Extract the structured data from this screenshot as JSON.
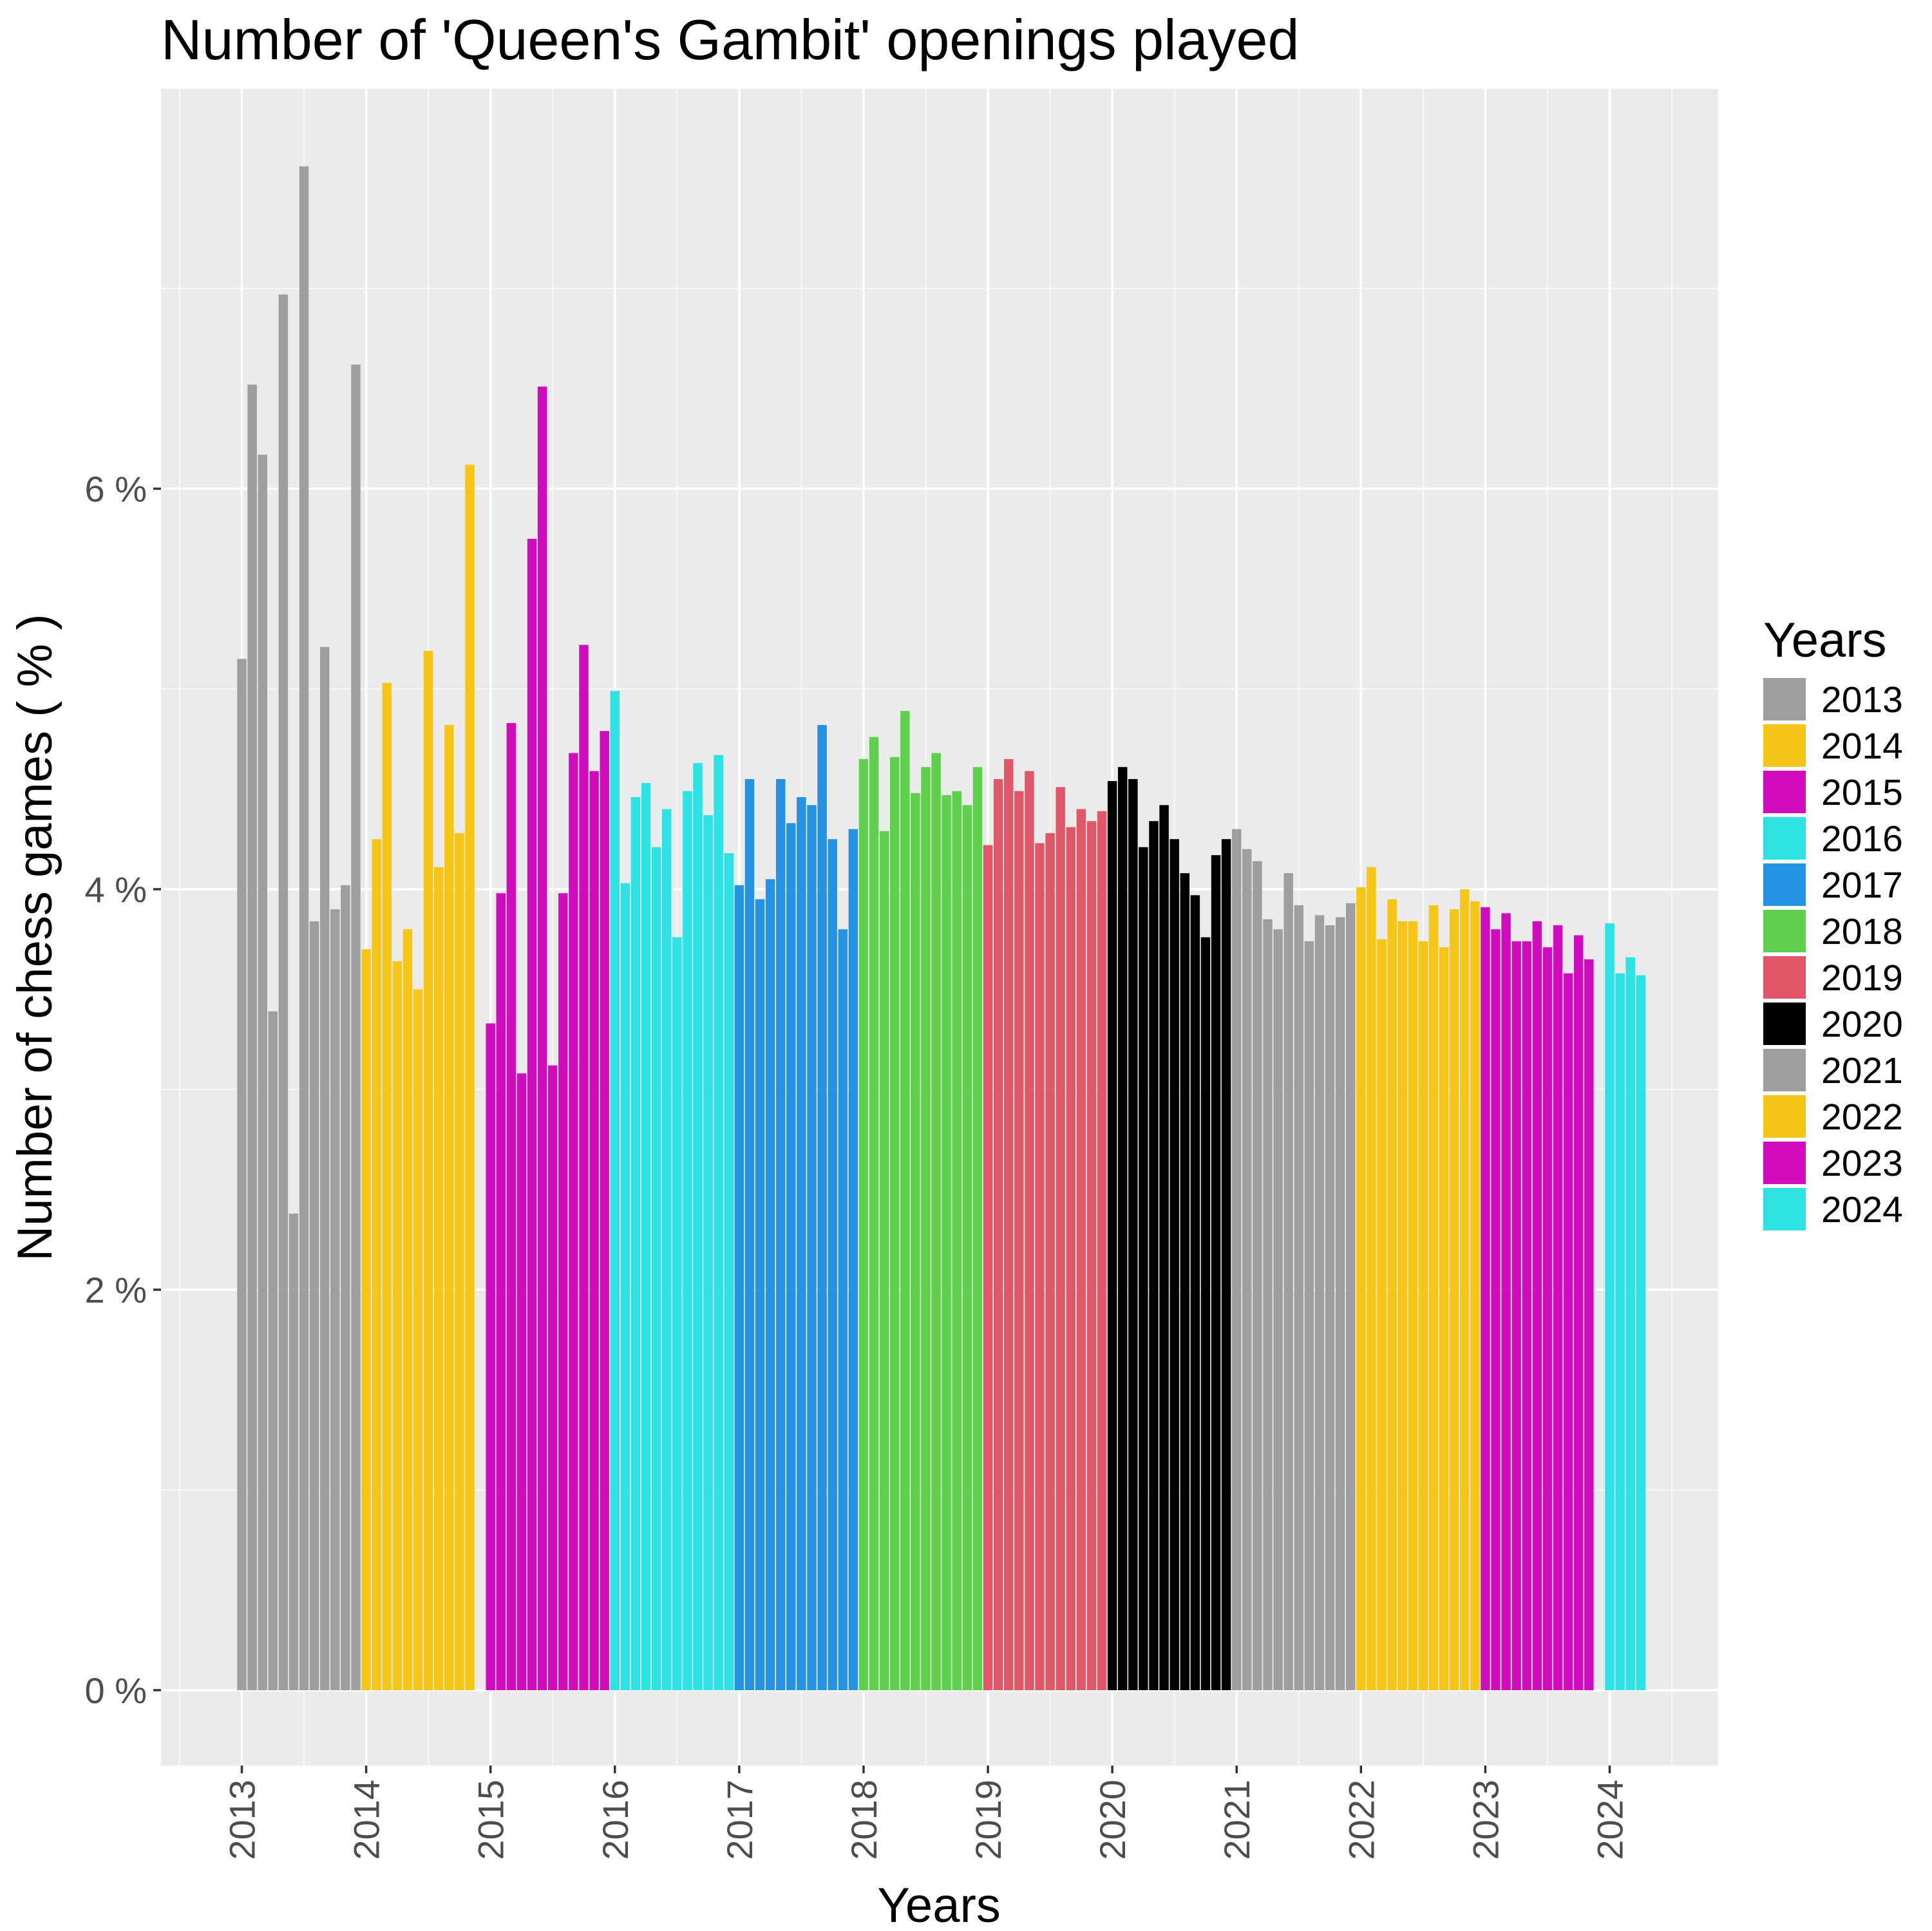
{
  "chart_data": {
    "type": "bar",
    "title": "Number of 'Queen's Gambit' openings played",
    "xlabel": "Years",
    "ylabel": "Number of chess games ( % )",
    "x_ticks": [
      "2013",
      "2014",
      "2015",
      "2016",
      "2017",
      "2018",
      "2019",
      "2020",
      "2021",
      "2022",
      "2023",
      "2024"
    ],
    "y_ticks": [
      "0 %",
      "2 %",
      "4 %",
      "6 %"
    ],
    "ylim": [
      -0.37,
      8.0
    ],
    "xlim": [
      2012.48,
      2024.87
    ],
    "grid": true,
    "legend_position": "right",
    "legend_title": "Years",
    "series": [
      {
        "name": "2013",
        "color": "#9e9e9e",
        "start": 2013.0,
        "values": [
          5.15,
          6.52,
          6.17,
          3.39,
          6.97,
          2.38,
          7.61,
          3.84,
          5.21,
          3.9,
          4.02,
          6.62
        ]
      },
      {
        "name": "2014",
        "color": "#f5c518",
        "start": 2014.0,
        "values": [
          3.7,
          4.25,
          5.03,
          3.64,
          3.8,
          3.5,
          5.19,
          4.11,
          4.82,
          4.28,
          6.12
        ]
      },
      {
        "name": "2015",
        "color": "#d10cbe",
        "start": 2015.0,
        "values": [
          3.33,
          3.98,
          4.83,
          3.08,
          5.75,
          6.51,
          3.12,
          3.98,
          4.68,
          5.22,
          4.59,
          4.79
        ]
      },
      {
        "name": "2016",
        "color": "#2ee1e3",
        "start": 2016.0,
        "values": [
          4.99,
          4.03,
          4.46,
          4.53,
          4.21,
          4.4,
          3.76,
          4.49,
          4.63,
          4.37,
          4.67,
          4.18
        ]
      },
      {
        "name": "2017",
        "color": "#2493e3",
        "start": 2017.0,
        "values": [
          4.02,
          4.55,
          3.95,
          4.05,
          4.55,
          4.33,
          4.46,
          4.42,
          4.82,
          4.25,
          3.8,
          4.3
        ]
      },
      {
        "name": "2018",
        "color": "#5fcf4e",
        "start": 2018.0,
        "values": [
          4.65,
          4.76,
          4.29,
          4.66,
          4.89,
          4.48,
          4.61,
          4.68,
          4.47,
          4.49,
          4.42,
          4.61
        ]
      },
      {
        "name": "2019",
        "color": "#e15769",
        "start": 2019.0,
        "values": [
          4.22,
          4.55,
          4.65,
          4.49,
          4.59,
          4.23,
          4.28,
          4.51,
          4.31,
          4.4,
          4.34,
          4.39
        ]
      },
      {
        "name": "2020",
        "color": "#000000",
        "start": 2020.0,
        "values": [
          4.54,
          4.61,
          4.55,
          4.21,
          4.34,
          4.42,
          4.25,
          4.08,
          3.97,
          3.76,
          4.17,
          4.25
        ]
      },
      {
        "name": "2021",
        "color": "#9e9e9e",
        "start": 2021.0,
        "values": [
          4.3,
          4.2,
          4.14,
          3.85,
          3.8,
          4.08,
          3.92,
          3.74,
          3.87,
          3.82,
          3.86,
          3.93
        ]
      },
      {
        "name": "2022",
        "color": "#f5c518",
        "start": 2022.0,
        "values": [
          4.01,
          4.11,
          3.75,
          3.95,
          3.84,
          3.84,
          3.74,
          3.92,
          3.71,
          3.9,
          4.0,
          3.94
        ]
      },
      {
        "name": "2023",
        "color": "#d10cbe",
        "start": 2023.0,
        "values": [
          3.91,
          3.8,
          3.88,
          3.74,
          3.74,
          3.84,
          3.71,
          3.82,
          3.58,
          3.77,
          3.65
        ]
      },
      {
        "name": "2024",
        "color": "#2ee1e3",
        "start": 2024.0,
        "values": [
          3.83,
          3.58,
          3.66,
          3.57
        ]
      }
    ]
  }
}
